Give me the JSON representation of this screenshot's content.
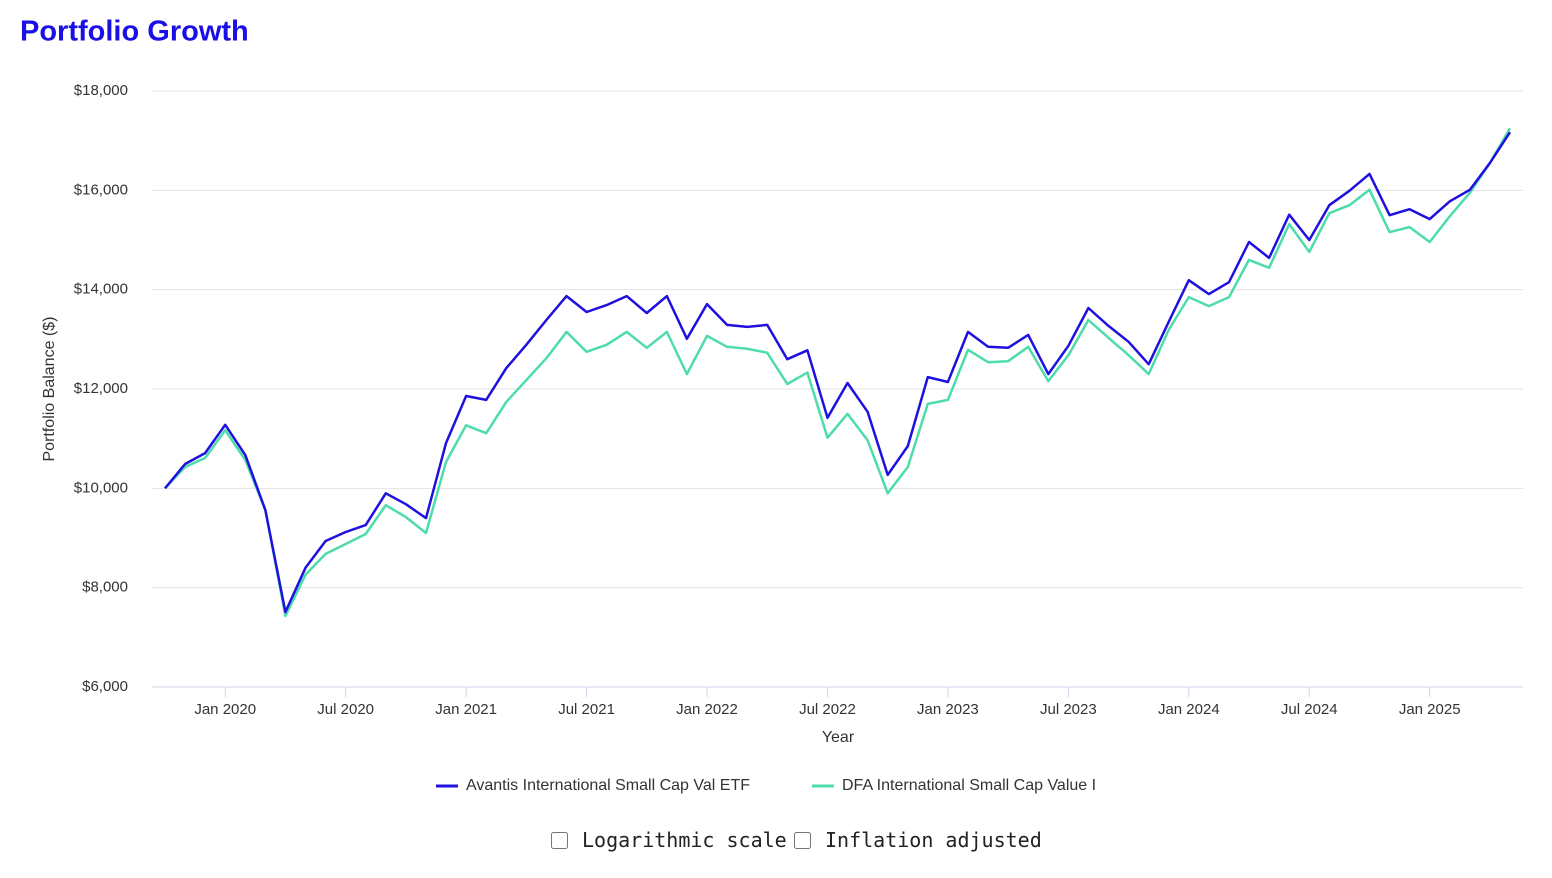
{
  "chart_data": {
    "type": "line",
    "title": "Portfolio Growth",
    "xlabel": "Year",
    "ylabel": "Portfolio Balance ($)",
    "x": [
      "2019-10",
      "2019-11",
      "2019-12",
      "2020-01",
      "2020-02",
      "2020-03",
      "2020-04",
      "2020-05",
      "2020-06",
      "2020-07",
      "2020-08",
      "2020-09",
      "2020-10",
      "2020-11",
      "2020-12",
      "2021-01",
      "2021-02",
      "2021-03",
      "2021-04",
      "2021-05",
      "2021-06",
      "2021-07",
      "2021-08",
      "2021-09",
      "2021-10",
      "2021-11",
      "2021-12",
      "2022-01",
      "2022-02",
      "2022-03",
      "2022-04",
      "2022-05",
      "2022-06",
      "2022-07",
      "2022-08",
      "2022-09",
      "2022-10",
      "2022-11",
      "2022-12",
      "2023-01",
      "2023-02",
      "2023-03",
      "2023-04",
      "2023-05",
      "2023-06",
      "2023-07",
      "2023-08",
      "2023-09",
      "2023-10",
      "2023-11",
      "2023-12",
      "2024-01",
      "2024-02",
      "2024-03",
      "2024-04",
      "2024-05",
      "2024-06",
      "2024-07",
      "2024-08",
      "2024-09",
      "2024-10",
      "2024-11",
      "2024-12",
      "2025-01",
      "2025-02",
      "2025-03",
      "2025-04",
      "2025-05"
    ],
    "series": [
      {
        "name": "Avantis International Small Cap Val ETF",
        "color": "#1f10e0",
        "values": [
          10000,
          10490,
          10710,
          11280,
          10670,
          9560,
          7510,
          8400,
          8940,
          9120,
          9260,
          9900,
          9680,
          9400,
          10910,
          11860,
          11780,
          12420,
          12890,
          13390,
          13870,
          13550,
          13690,
          13870,
          13530,
          13870,
          13010,
          13710,
          13290,
          13250,
          13290,
          12600,
          12780,
          11420,
          12120,
          11540,
          10270,
          10850,
          12240,
          12140,
          13150,
          12850,
          12830,
          13090,
          12300,
          12870,
          13630,
          13270,
          12950,
          12500,
          13350,
          14190,
          13910,
          14150,
          14960,
          14640,
          15510,
          15000,
          15700,
          15990,
          16330,
          15500,
          15620,
          15420,
          15780,
          16010,
          16550,
          17170
        ]
      },
      {
        "name": "DFA International Small Cap Value I",
        "color": "#4ddcaa",
        "values": [
          10000,
          10430,
          10610,
          11170,
          10570,
          9560,
          7430,
          8260,
          8680,
          8880,
          9080,
          9660,
          9420,
          9100,
          10530,
          11270,
          11110,
          11740,
          12180,
          12620,
          13150,
          12750,
          12890,
          13150,
          12830,
          13150,
          12300,
          13070,
          12850,
          12810,
          12730,
          12100,
          12330,
          11020,
          11500,
          10970,
          9900,
          10430,
          11700,
          11780,
          12790,
          12540,
          12560,
          12850,
          12160,
          12680,
          13390,
          13030,
          12680,
          12300,
          13190,
          13850,
          13670,
          13850,
          14600,
          14440,
          15320,
          14760,
          15540,
          15700,
          16010,
          15160,
          15260,
          14960,
          15480,
          15950,
          16550,
          17250
        ]
      }
    ],
    "xticks": [
      {
        "value": "2020-01",
        "label": "Jan 2020"
      },
      {
        "value": "2020-07",
        "label": "Jul 2020"
      },
      {
        "value": "2021-01",
        "label": "Jan 2021"
      },
      {
        "value": "2021-07",
        "label": "Jul 2021"
      },
      {
        "value": "2022-01",
        "label": "Jan 2022"
      },
      {
        "value": "2022-07",
        "label": "Jul 2022"
      },
      {
        "value": "2023-01",
        "label": "Jan 2023"
      },
      {
        "value": "2023-07",
        "label": "Jul 2023"
      },
      {
        "value": "2024-01",
        "label": "Jan 2024"
      },
      {
        "value": "2024-07",
        "label": "Jul 2024"
      },
      {
        "value": "2025-01",
        "label": "Jan 2025"
      }
    ],
    "ylim": [
      6000,
      18000
    ],
    "yticks": [
      {
        "value": 6000,
        "label": "$6,000"
      },
      {
        "value": 8000,
        "label": "$8,000"
      },
      {
        "value": 10000,
        "label": "$10,000"
      },
      {
        "value": 12000,
        "label": "$12,000"
      },
      {
        "value": 14000,
        "label": "$14,000"
      },
      {
        "value": 16000,
        "label": "$16,000"
      },
      {
        "value": 18000,
        "label": "$18,000"
      }
    ],
    "grid": true,
    "legend": "bottom"
  },
  "controls": [
    {
      "label": "Logarithmic scale",
      "checked": false
    },
    {
      "label": "Inflation adjusted",
      "checked": false
    }
  ]
}
